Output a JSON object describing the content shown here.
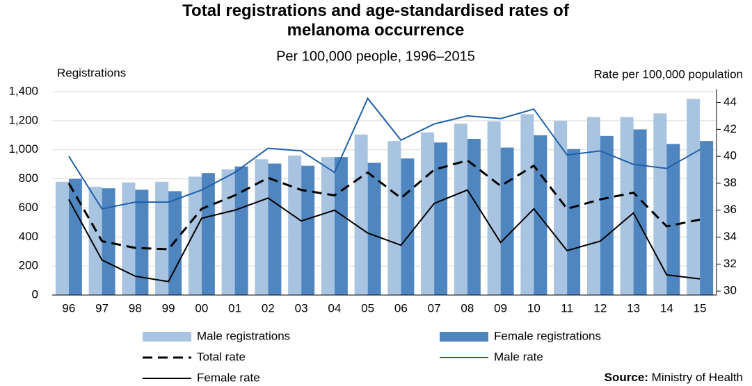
{
  "chart_data": {
    "type": "bar_line",
    "title": "Total registrations and age-standardised rates of melanoma occurrence",
    "subtitle": "Per 100,000 people, 1996–2015",
    "y_label": "Registrations",
    "y2_label": "Rate per 100,000 population",
    "source_label": "Source:",
    "source": "Ministry of Health",
    "categories": [
      "96",
      "97",
      "98",
      "99",
      "00",
      "01",
      "02",
      "03",
      "04",
      "05",
      "06",
      "07",
      "08",
      "09",
      "10",
      "11",
      "12",
      "13",
      "14",
      "15"
    ],
    "ylim": [
      0,
      1400
    ],
    "yticks": [
      0,
      200,
      400,
      600,
      800,
      {
        "value": 1000,
        "label": "1,000"
      },
      {
        "value": 1200,
        "label": "1,200"
      },
      {
        "value": 1400,
        "label": "1,400"
      }
    ],
    "y2lim": [
      29.7,
      44.8
    ],
    "y2ticks": [
      30,
      32,
      34,
      36,
      38,
      40,
      42,
      44
    ],
    "grid": true,
    "series": [
      {
        "name": "Male registrations",
        "type": "bar",
        "color": "#a9c4e0",
        "values": [
          780,
          745,
          775,
          780,
          815,
          865,
          935,
          960,
          950,
          1105,
          1060,
          1120,
          1180,
          1195,
          1245,
          1200,
          1225,
          1225,
          1250,
          1350
        ]
      },
      {
        "name": "Female registrations",
        "type": "bar",
        "color": "#4f86c0",
        "values": [
          800,
          735,
          725,
          715,
          840,
          885,
          905,
          890,
          950,
          910,
          940,
          1050,
          1075,
          1015,
          1100,
          1005,
          1095,
          1140,
          1040,
          1060
        ]
      },
      {
        "name": "Total rate",
        "type": "line",
        "axis": "y2",
        "color": "#000000",
        "dashed": true,
        "values": [
          38,
          33.7,
          33.2,
          33.1,
          36.1,
          37.1,
          38.4,
          37.5,
          37.1,
          38.8,
          36.9,
          39,
          39.7,
          37.8,
          39.3,
          36.1,
          36.8,
          37.3,
          34.8,
          35.3
        ]
      },
      {
        "name": "Male rate",
        "type": "line",
        "axis": "y2",
        "color": "#1f5fa8",
        "values": [
          40,
          36.1,
          36.6,
          36.6,
          37.5,
          38.8,
          40.6,
          40.4,
          38.8,
          44.3,
          41.2,
          42.4,
          43,
          42.8,
          43.5,
          40.1,
          40.4,
          39.4,
          39.1,
          40.5
        ]
      },
      {
        "name": "Female rate",
        "type": "line",
        "axis": "y2",
        "color": "#000000",
        "values": [
          36.8,
          32.3,
          31.1,
          30.7,
          35.4,
          36,
          36.9,
          35.2,
          36,
          34.3,
          33.4,
          36.5,
          37.5,
          33.6,
          36.1,
          33,
          33.7,
          35.8,
          31.2,
          30.9
        ]
      }
    ]
  }
}
